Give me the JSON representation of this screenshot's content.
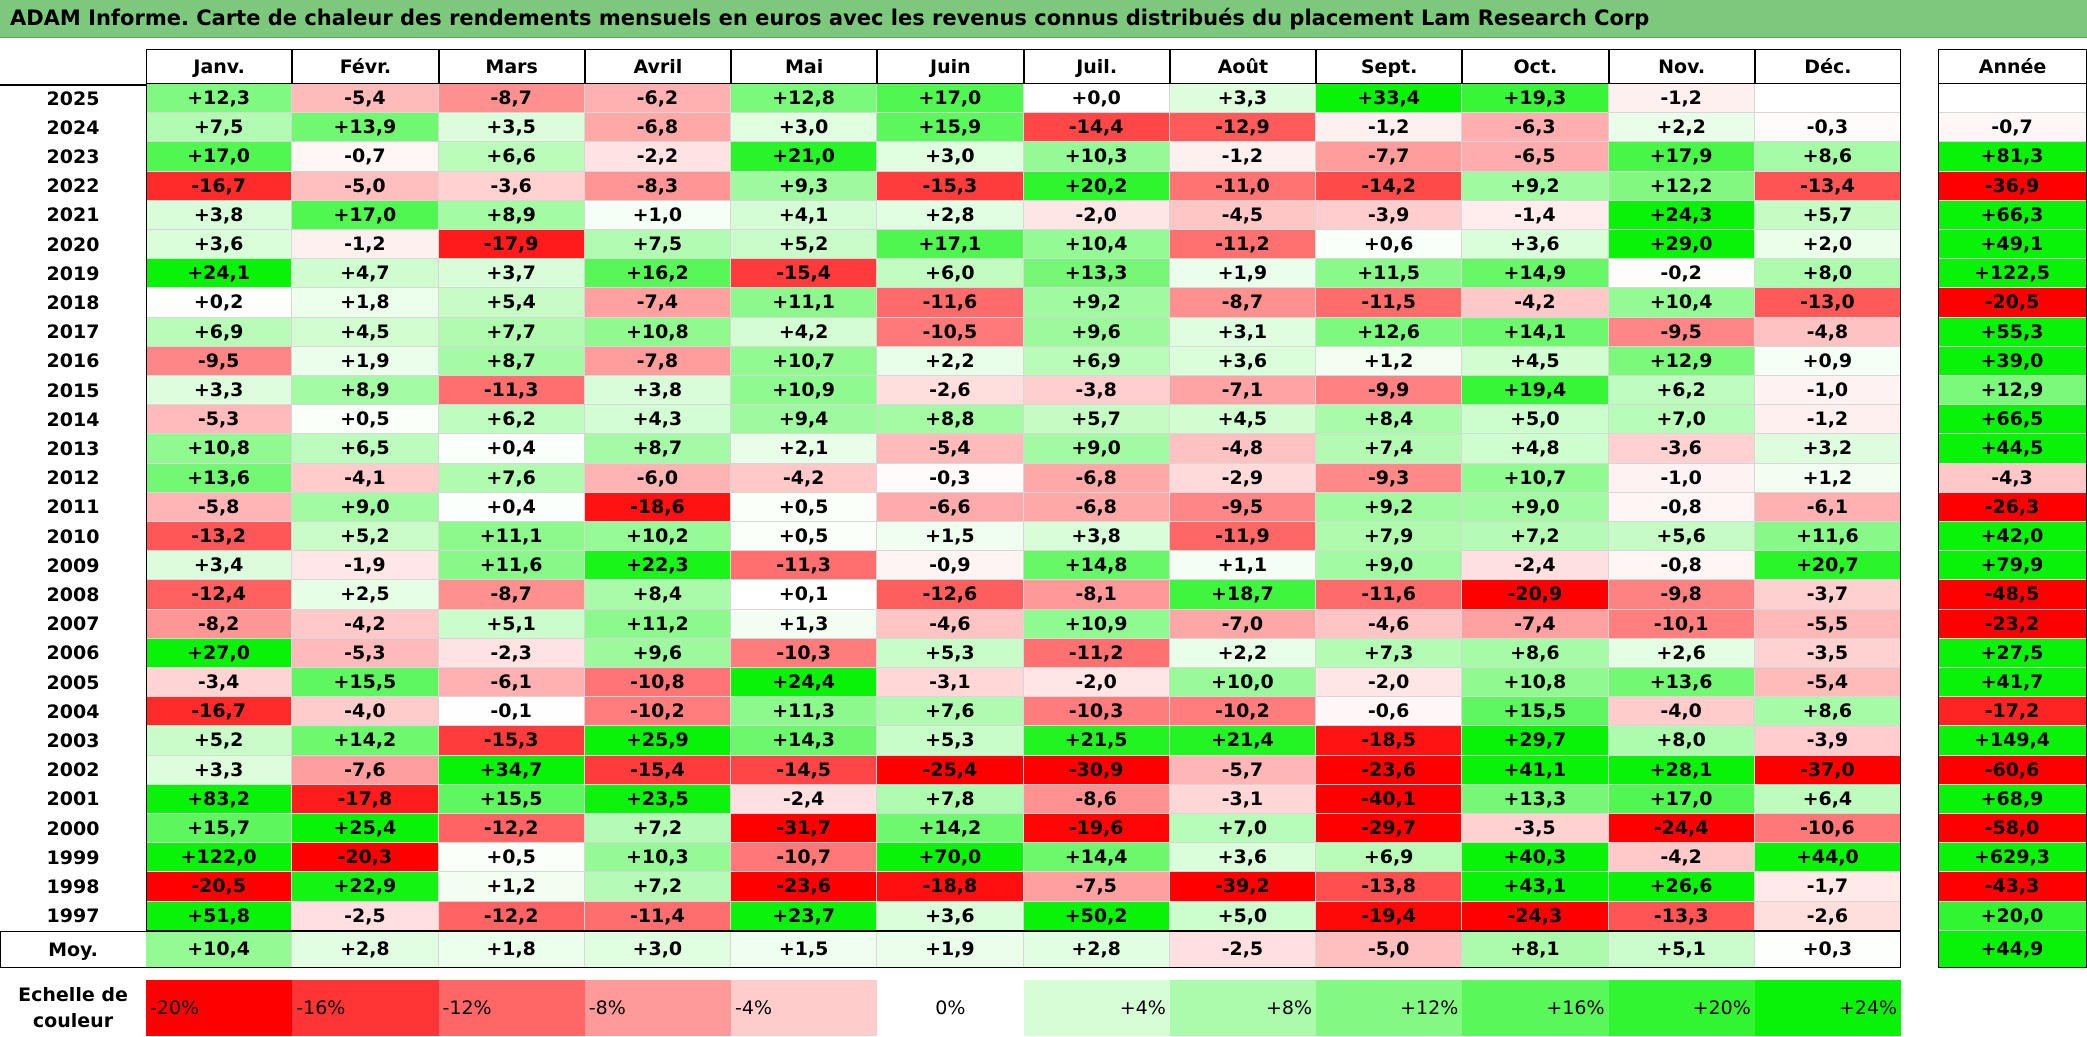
{
  "title": "ADAM Informe. Carte de chaleur des rendements mensuels en euros avec les revenus connus distribués du placement Lam Research Corp",
  "months": [
    "Janv.",
    "Févr.",
    "Mars",
    "Avril",
    "Mai",
    "Juin",
    "Juil.",
    "Août",
    "Sept.",
    "Oct.",
    "Nov.",
    "Déc."
  ],
  "year_header": "Année",
  "avg_label": "Moy.",
  "scale_label_line1": "Echelle de",
  "scale_label_line2": "couleur",
  "scale": [
    {
      "label": "-20%",
      "value": -20,
      "color": "#ff0000"
    },
    {
      "label": "-16%",
      "value": -16,
      "color": "#ff3434"
    },
    {
      "label": "-12%",
      "value": -12,
      "color": "#ff6767"
    },
    {
      "label": "-8%",
      "value": -8,
      "color": "#ff9a9a"
    },
    {
      "label": "-4%",
      "value": -4,
      "color": "#ffcccc"
    },
    {
      "label": "0%",
      "value": 0,
      "color": "#ffffff"
    },
    {
      "label": "+4%",
      "value": 4,
      "color": "#d6fdd6"
    },
    {
      "label": "+8%",
      "value": 8,
      "color": "#acfbac"
    },
    {
      "label": "+12%",
      "value": 12,
      "color": "#83f983"
    },
    {
      "label": "+16%",
      "value": 16,
      "color": "#5af75a"
    },
    {
      "label": "+20%",
      "value": 20,
      "color": "#31f531"
    },
    {
      "label": "+24%",
      "value": 24,
      "color": "#08f308"
    }
  ],
  "chart_data": {
    "type": "heatmap",
    "title": "ADAM Informe. Carte de chaleur des rendements mensuels en euros avec les revenus connus distribués du placement Lam Research Corp",
    "x": [
      "Janv.",
      "Févr.",
      "Mars",
      "Avril",
      "Mai",
      "Juin",
      "Juil.",
      "Août",
      "Sept.",
      "Oct.",
      "Nov.",
      "Déc."
    ],
    "rows": [
      {
        "year": "2025",
        "values": [
          "+12,3",
          "-5,4",
          "-8,7",
          "-6,2",
          "+12,8",
          "+17,0",
          "+0,0",
          "+3,3",
          "+33,4",
          "+19,3",
          "-1,2",
          ""
        ],
        "annual": ""
      },
      {
        "year": "2024",
        "values": [
          "+7,5",
          "+13,9",
          "+3,5",
          "-6,8",
          "+3,0",
          "+15,9",
          "-14,4",
          "-12,9",
          "-1,2",
          "-6,3",
          "+2,2",
          "-0,3"
        ],
        "annual": "-0,7"
      },
      {
        "year": "2023",
        "values": [
          "+17,0",
          "-0,7",
          "+6,6",
          "-2,2",
          "+21,0",
          "+3,0",
          "+10,3",
          "-1,2",
          "-7,7",
          "-6,5",
          "+17,9",
          "+8,6"
        ],
        "annual": "+81,3"
      },
      {
        "year": "2022",
        "values": [
          "-16,7",
          "-5,0",
          "-3,6",
          "-8,3",
          "+9,3",
          "-15,3",
          "+20,2",
          "-11,0",
          "-14,2",
          "+9,2",
          "+12,2",
          "-13,4"
        ],
        "annual": "-36,9"
      },
      {
        "year": "2021",
        "values": [
          "+3,8",
          "+17,0",
          "+8,9",
          "+1,0",
          "+4,1",
          "+2,8",
          "-2,0",
          "-4,5",
          "-3,9",
          "-1,4",
          "+24,3",
          "+5,7"
        ],
        "annual": "+66,3"
      },
      {
        "year": "2020",
        "values": [
          "+3,6",
          "-1,2",
          "-17,9",
          "+7,5",
          "+5,2",
          "+17,1",
          "+10,4",
          "-11,2",
          "+0,6",
          "+3,6",
          "+29,0",
          "+2,0"
        ],
        "annual": "+49,1"
      },
      {
        "year": "2019",
        "values": [
          "+24,1",
          "+4,7",
          "+3,7",
          "+16,2",
          "-15,4",
          "+6,0",
          "+13,3",
          "+1,9",
          "+11,5",
          "+14,9",
          "-0,2",
          "+8,0"
        ],
        "annual": "+122,5"
      },
      {
        "year": "2018",
        "values": [
          "+0,2",
          "+1,8",
          "+5,4",
          "-7,4",
          "+11,1",
          "-11,6",
          "+9,2",
          "-8,7",
          "-11,5",
          "-4,2",
          "+10,4",
          "-13,0"
        ],
        "annual": "-20,5"
      },
      {
        "year": "2017",
        "values": [
          "+6,9",
          "+4,5",
          "+7,7",
          "+10,8",
          "+4,2",
          "-10,5",
          "+9,6",
          "+3,1",
          "+12,6",
          "+14,1",
          "-9,5",
          "-4,8"
        ],
        "annual": "+55,3"
      },
      {
        "year": "2016",
        "values": [
          "-9,5",
          "+1,9",
          "+8,7",
          "-7,8",
          "+10,7",
          "+2,2",
          "+6,9",
          "+3,6",
          "+1,2",
          "+4,5",
          "+12,9",
          "+0,9"
        ],
        "annual": "+39,0"
      },
      {
        "year": "2015",
        "values": [
          "+3,3",
          "+8,9",
          "-11,3",
          "+3,8",
          "+10,9",
          "-2,6",
          "-3,8",
          "-7,1",
          "-9,9",
          "+19,4",
          "+6,2",
          "-1,0"
        ],
        "annual": "+12,9"
      },
      {
        "year": "2014",
        "values": [
          "-5,3",
          "+0,5",
          "+6,2",
          "+4,3",
          "+9,4",
          "+8,8",
          "+5,7",
          "+4,5",
          "+8,4",
          "+5,0",
          "+7,0",
          "-1,2"
        ],
        "annual": "+66,5"
      },
      {
        "year": "2013",
        "values": [
          "+10,8",
          "+6,5",
          "+0,4",
          "+8,7",
          "+2,1",
          "-5,4",
          "+9,0",
          "-4,8",
          "+7,4",
          "+4,8",
          "-3,6",
          "+3,2"
        ],
        "annual": "+44,5"
      },
      {
        "year": "2012",
        "values": [
          "+13,6",
          "-4,1",
          "+7,6",
          "-6,0",
          "-4,2",
          "-0,3",
          "-6,8",
          "-2,9",
          "-9,3",
          "+10,7",
          "-1,0",
          "+1,2"
        ],
        "annual": "-4,3"
      },
      {
        "year": "2011",
        "values": [
          "-5,8",
          "+9,0",
          "+0,4",
          "-18,6",
          "+0,5",
          "-6,6",
          "-6,8",
          "-9,5",
          "+9,2",
          "+9,0",
          "-0,8",
          "-6,1"
        ],
        "annual": "-26,3"
      },
      {
        "year": "2010",
        "values": [
          "-13,2",
          "+5,2",
          "+11,1",
          "+10,2",
          "+0,5",
          "+1,5",
          "+3,8",
          "-11,9",
          "+7,9",
          "+7,2",
          "+5,6",
          "+11,6"
        ],
        "annual": "+42,0"
      },
      {
        "year": "2009",
        "values": [
          "+3,4",
          "-1,9",
          "+11,6",
          "+22,3",
          "-11,3",
          "-0,9",
          "+14,8",
          "+1,1",
          "+9,0",
          "-2,4",
          "-0,8",
          "+20,7"
        ],
        "annual": "+79,9"
      },
      {
        "year": "2008",
        "values": [
          "-12,4",
          "+2,5",
          "-8,7",
          "+8,4",
          "+0,1",
          "-12,6",
          "-8,1",
          "+18,7",
          "-11,6",
          "-20,9",
          "-9,8",
          "-3,7"
        ],
        "annual": "-48,5"
      },
      {
        "year": "2007",
        "values": [
          "-8,2",
          "-4,2",
          "+5,1",
          "+11,2",
          "+1,3",
          "-4,6",
          "+10,9",
          "-7,0",
          "-4,6",
          "-7,4",
          "-10,1",
          "-5,5"
        ],
        "annual": "-23,2"
      },
      {
        "year": "2006",
        "values": [
          "+27,0",
          "-5,3",
          "-2,3",
          "+9,6",
          "-10,3",
          "+5,3",
          "-11,2",
          "+2,2",
          "+7,3",
          "+8,6",
          "+2,6",
          "-3,5"
        ],
        "annual": "+27,5"
      },
      {
        "year": "2005",
        "values": [
          "-3,4",
          "+15,5",
          "-6,1",
          "-10,8",
          "+24,4",
          "-3,1",
          "-2,0",
          "+10,0",
          "-2,0",
          "+10,8",
          "+13,6",
          "-5,4"
        ],
        "annual": "+41,7"
      },
      {
        "year": "2004",
        "values": [
          "-16,7",
          "-4,0",
          "-0,1",
          "-10,2",
          "+11,3",
          "+7,6",
          "-10,3",
          "-10,2",
          "-0,6",
          "+15,5",
          "-4,0",
          "+8,6"
        ],
        "annual": "-17,2"
      },
      {
        "year": "2003",
        "values": [
          "+5,2",
          "+14,2",
          "-15,3",
          "+25,9",
          "+14,3",
          "+5,3",
          "+21,5",
          "+21,4",
          "-18,5",
          "+29,7",
          "+8,0",
          "-3,9"
        ],
        "annual": "+149,4"
      },
      {
        "year": "2002",
        "values": [
          "+3,3",
          "-7,6",
          "+34,7",
          "-15,4",
          "-14,5",
          "-25,4",
          "-30,9",
          "-5,7",
          "-23,6",
          "+41,1",
          "+28,1",
          "-37,0"
        ],
        "annual": "-60,6"
      },
      {
        "year": "2001",
        "values": [
          "+83,2",
          "-17,8",
          "+15,5",
          "+23,5",
          "-2,4",
          "+7,8",
          "-8,6",
          "-3,1",
          "-40,1",
          "+13,3",
          "+17,0",
          "+6,4"
        ],
        "annual": "+68,9"
      },
      {
        "year": "2000",
        "values": [
          "+15,7",
          "+25,4",
          "-12,2",
          "+7,2",
          "-31,7",
          "+14,2",
          "-19,6",
          "+7,0",
          "-29,7",
          "-3,5",
          "-24,4",
          "-10,6"
        ],
        "annual": "-58,0"
      },
      {
        "year": "1999",
        "values": [
          "+122,0",
          "-20,3",
          "+0,5",
          "+10,3",
          "-10,7",
          "+70,0",
          "+14,4",
          "+3,6",
          "+6,9",
          "+40,3",
          "-4,2",
          "+44,0"
        ],
        "annual": "+629,3"
      },
      {
        "year": "1998",
        "values": [
          "-20,5",
          "+22,9",
          "+1,2",
          "+7,2",
          "-23,6",
          "-18,8",
          "-7,5",
          "-39,2",
          "-13,8",
          "+43,1",
          "+26,6",
          "-1,7"
        ],
        "annual": "-43,3"
      },
      {
        "year": "1997",
        "values": [
          "+51,8",
          "-2,5",
          "-12,2",
          "-11,4",
          "+23,7",
          "+3,6",
          "+50,2",
          "+5,0",
          "-19,4",
          "-24,3",
          "-13,3",
          "-2,6"
        ],
        "annual": "+20,0"
      }
    ],
    "average": {
      "label": "Moy.",
      "values": [
        "+10,4",
        "+2,8",
        "+1,8",
        "+3,0",
        "+1,5",
        "+1,9",
        "+2,8",
        "-2,5",
        "-5,0",
        "+8,1",
        "+5,1",
        "+0,3"
      ],
      "annual": "+44,9"
    }
  }
}
